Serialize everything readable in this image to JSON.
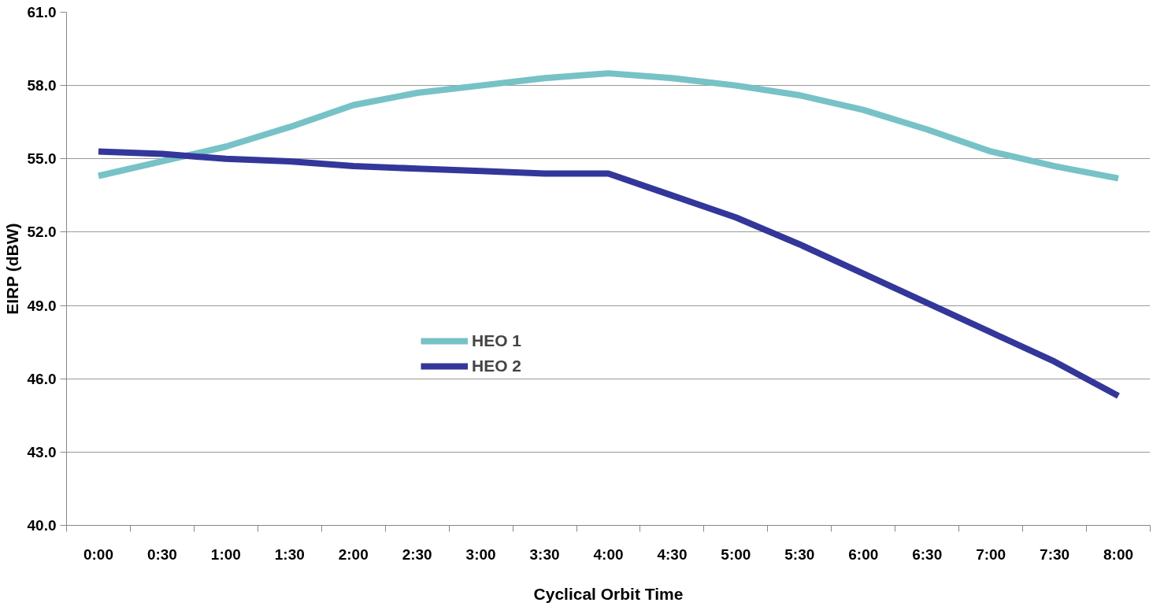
{
  "chart_data": {
    "type": "line",
    "xlabel": "Cyclical Orbit Time",
    "ylabel": "EIRP (dBW)",
    "categories": [
      "0:00",
      "0:30",
      "1:00",
      "1:30",
      "2:00",
      "2:30",
      "3:00",
      "3:30",
      "4:00",
      "4:30",
      "5:00",
      "5:30",
      "6:00",
      "6:30",
      "7:00",
      "7:30",
      "8:00"
    ],
    "series": [
      {
        "name": "HEO 1",
        "color": "#77c2c6",
        "values": [
          54.3,
          54.9,
          55.5,
          56.3,
          57.2,
          57.7,
          58.0,
          58.3,
          58.5,
          58.3,
          58.0,
          57.6,
          57.0,
          56.2,
          55.3,
          54.7,
          54.2
        ]
      },
      {
        "name": "HEO 2",
        "color": "#33379a",
        "values": [
          55.3,
          55.2,
          55.0,
          54.9,
          54.7,
          54.6,
          54.5,
          54.4,
          54.4,
          53.5,
          52.6,
          51.5,
          50.3,
          49.1,
          47.9,
          46.7,
          45.3
        ]
      }
    ],
    "ylim": [
      40,
      61
    ],
    "yticks": [
      {
        "value": 40,
        "label": "40.0"
      },
      {
        "value": 43,
        "label": "43.0"
      },
      {
        "value": 46,
        "label": "46.0"
      },
      {
        "value": 49,
        "label": "49.0"
      },
      {
        "value": 52,
        "label": "52.0"
      },
      {
        "value": 55,
        "label": "55.0"
      },
      {
        "value": 58,
        "label": "58.0"
      },
      {
        "value": 61,
        "label": "61.0"
      }
    ],
    "grid": "y",
    "legend": "center",
    "marker": "none",
    "line_style": "solid"
  }
}
